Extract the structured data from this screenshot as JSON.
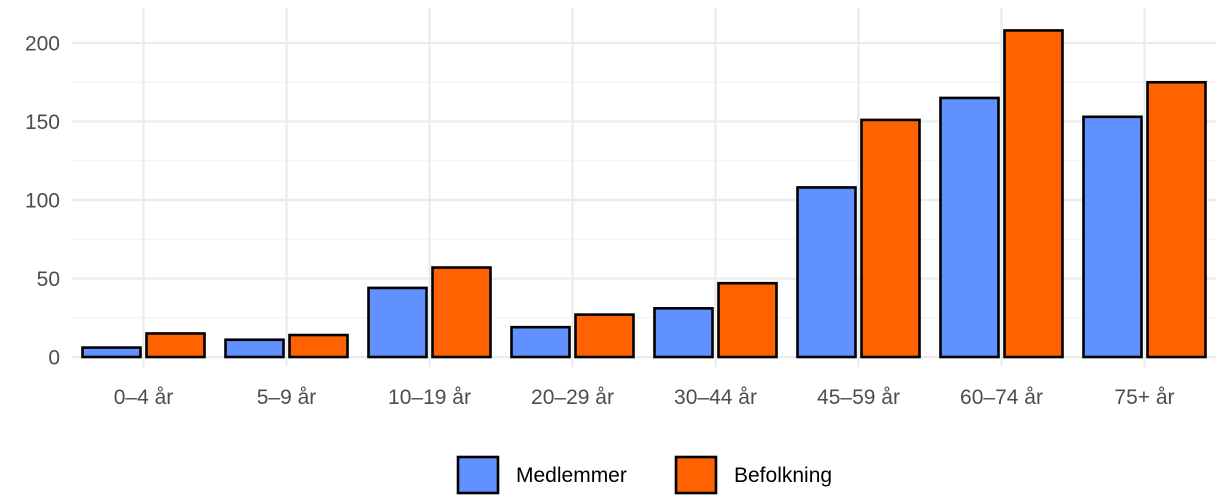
{
  "chart_data": {
    "type": "bar",
    "title": "",
    "xlabel": "",
    "ylabel": "",
    "categories": [
      "0–4 år",
      "5–9 år",
      "10–19 år",
      "20–29 år",
      "30–44 år",
      "45–59 år",
      "60–74 år",
      "75+ år"
    ],
    "series": [
      {
        "name": "Medlemmer",
        "color": "#6191ff",
        "values": [
          6,
          11,
          44,
          19,
          31,
          108,
          165,
          153
        ]
      },
      {
        "name": "Befolkning",
        "color": "#ff6200",
        "values": [
          15,
          14,
          57,
          27,
          47,
          151,
          208,
          175
        ]
      }
    ],
    "ylim": [
      0,
      210
    ],
    "yticks": [
      0,
      50,
      100,
      150,
      200
    ],
    "grid": true,
    "legend_position": "bottom"
  }
}
